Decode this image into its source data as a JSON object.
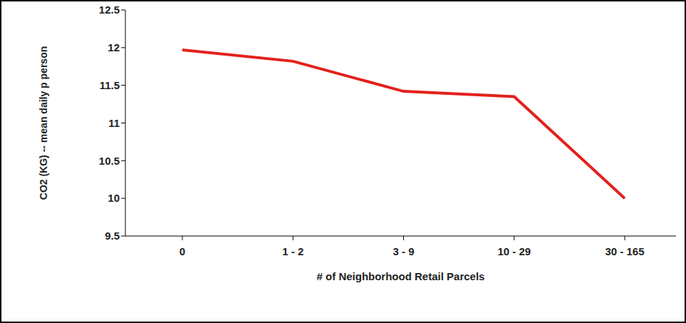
{
  "chart_data": {
    "type": "line",
    "x_label": "# of Neighborhood Retail Parcels",
    "y_label": "CO2 (KG) -- mean daily p person",
    "categories": [
      "0",
      "1 - 2",
      "3 - 9",
      "10 - 29",
      "30 - 165"
    ],
    "values": [
      11.97,
      11.82,
      11.42,
      11.35,
      10
    ],
    "color": "#e3211c",
    "ylim": [
      9.5,
      12.5
    ],
    "yticks": [
      9.5,
      10,
      10.5,
      11,
      11.5,
      12,
      12.5
    ],
    "grid": false,
    "marker": "none",
    "line_style": "solid"
  }
}
